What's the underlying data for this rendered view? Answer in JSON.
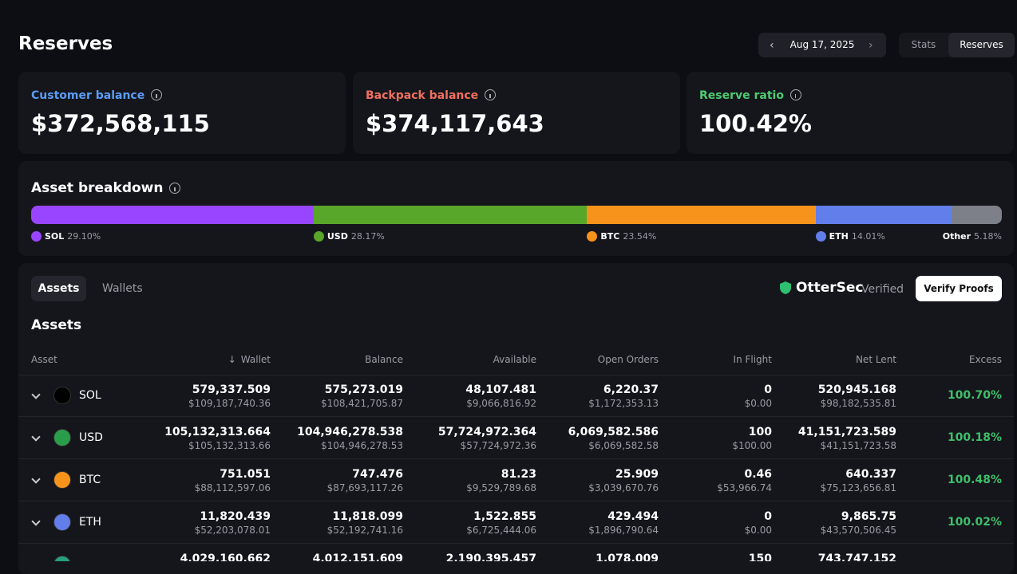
{
  "header": {
    "title": "Reserves",
    "date": "Aug 17, 2025",
    "tabs": [
      "Stats",
      "Reserves"
    ]
  },
  "summary": [
    {
      "label": "Customer balance",
      "value": "$372,568,115",
      "color": "#5b9cf6"
    },
    {
      "label": "Backpack balance",
      "value": "$374,117,643",
      "color": "#f0705f"
    },
    {
      "label": "Reserve ratio",
      "value": "100.42%",
      "color": "#4ecb71"
    }
  ],
  "breakdown": {
    "title": "Asset breakdown",
    "items": [
      {
        "name": "SOL",
        "percent": "29.10%",
        "color": "#9945ff"
      },
      {
        "name": "USD",
        "percent": "28.17%",
        "color": "#58a72a"
      },
      {
        "name": "BTC",
        "percent": "23.54%",
        "color": "#f7931a"
      },
      {
        "name": "ETH",
        "percent": "14.01%",
        "color": "#627eea"
      },
      {
        "name": "Other",
        "percent": "5.18%",
        "color": "#7d8089"
      }
    ]
  },
  "assets_panel": {
    "tabs": [
      "Assets",
      "Wallets"
    ],
    "brand": "OtterSec",
    "verified": "Verified",
    "button": "Verify Proofs",
    "title": "Assets",
    "columns": [
      "Asset",
      "Wallet",
      "Balance",
      "Available",
      "Open Orders",
      "In Flight",
      "Net Lent",
      "Excess"
    ],
    "rows": [
      {
        "asset": "SOL",
        "icon": "#000000",
        "cells": [
          [
            "579,337.509",
            "$109,187,740.36"
          ],
          [
            "575,273.019",
            "$108,421,705.87"
          ],
          [
            "48,107.481",
            "$9,066,816.92"
          ],
          [
            "6,220.37",
            "$1,172,353.13"
          ],
          [
            "0",
            "$0.00"
          ],
          [
            "520,945.168",
            "$98,182,535.81"
          ]
        ],
        "excess": "100.70%"
      },
      {
        "asset": "USD",
        "icon": "#2a9d4b",
        "cells": [
          [
            "105,132,313.664",
            "$105,132,313.66"
          ],
          [
            "104,946,278.538",
            "$104,946,278.53"
          ],
          [
            "57,724,972.364",
            "$57,724,972.36"
          ],
          [
            "6,069,582.586",
            "$6,069,582.58"
          ],
          [
            "100",
            "$100.00"
          ],
          [
            "41,151,723.589",
            "$41,151,723.58"
          ]
        ],
        "excess": "100.18%"
      },
      {
        "asset": "BTC",
        "icon": "#f7931a",
        "cells": [
          [
            "751.051",
            "$88,112,597.06"
          ],
          [
            "747.476",
            "$87,693,117.26"
          ],
          [
            "81.23",
            "$9,529,789.68"
          ],
          [
            "25.909",
            "$3,039,670.76"
          ],
          [
            "0.46",
            "$53,966.74"
          ],
          [
            "640.337",
            "$75,123,656.81"
          ]
        ],
        "excess": "100.48%"
      },
      {
        "asset": "ETH",
        "icon": "#627eea",
        "cells": [
          [
            "11,820.439",
            "$52,203,078.01"
          ],
          [
            "11,818.099",
            "$52,192,741.16"
          ],
          [
            "1,522.855",
            "$6,725,444.06"
          ],
          [
            "429.494",
            "$1,896,790.64"
          ],
          [
            "0",
            "$0.00"
          ],
          [
            "9,865.75",
            "$43,570,506.45"
          ]
        ],
        "excess": "100.02%"
      },
      {
        "icon": "#26a17b",
        "cells": [
          [
            "4,029,160.662"
          ],
          [
            "4,012,151.609"
          ],
          [
            "2,190,395.457"
          ],
          [
            "1,078.009"
          ],
          [
            "150"
          ],
          [
            "743,747.152"
          ]
        ]
      }
    ]
  }
}
